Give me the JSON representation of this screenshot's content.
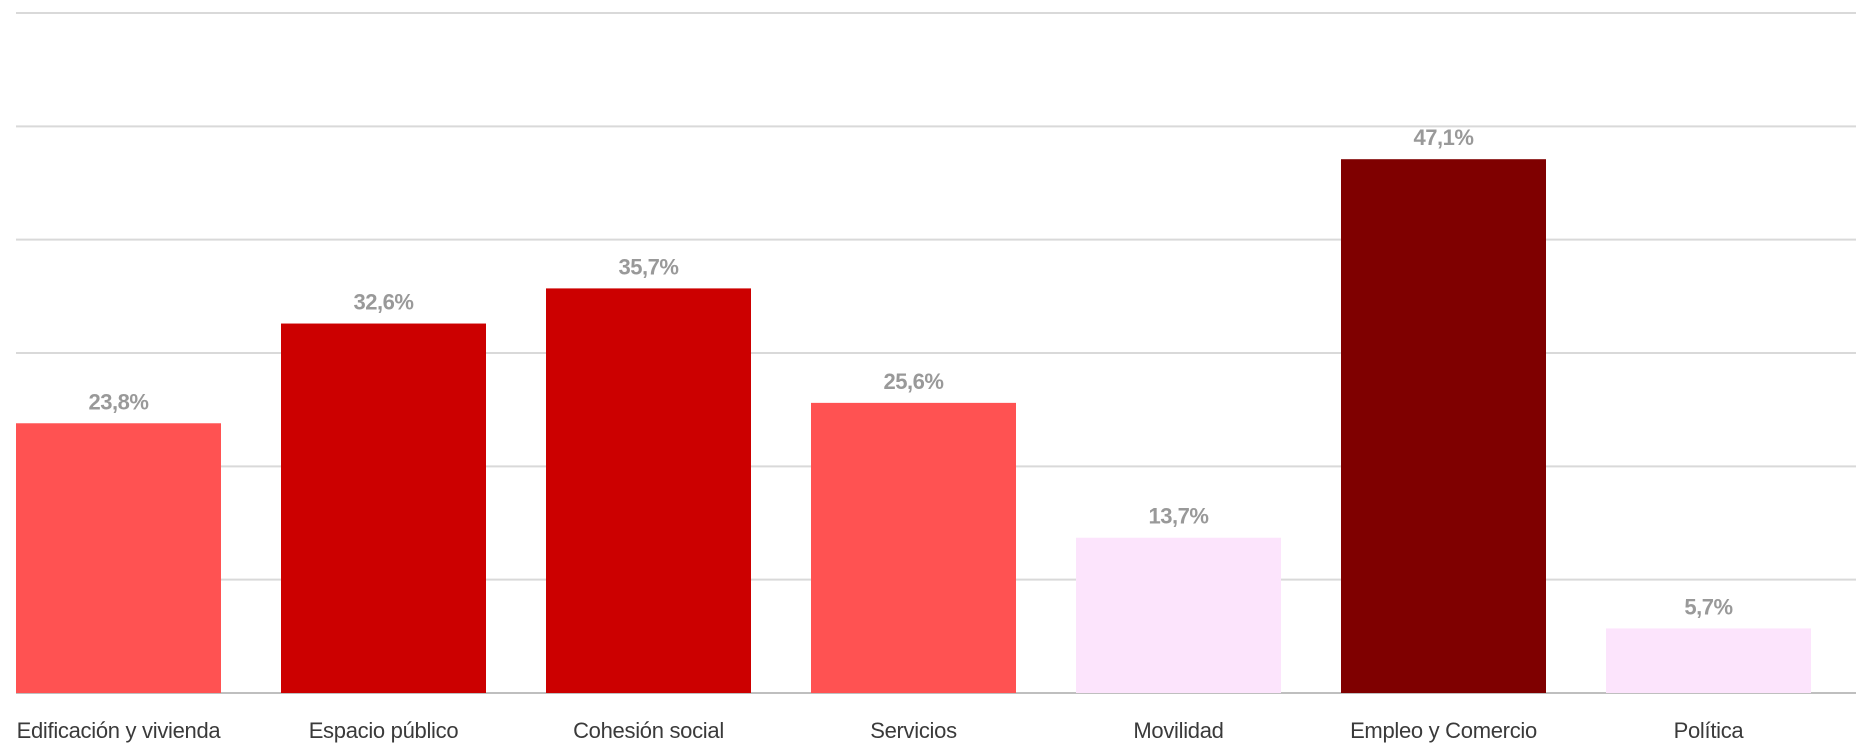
{
  "chart_data": {
    "type": "bar",
    "title": "",
    "xlabel": "",
    "ylabel": "",
    "ylim": [
      0,
      60
    ],
    "grid": true,
    "gridline_values": [
      0,
      10,
      20,
      30,
      40,
      50,
      60
    ],
    "show_y_tick_labels": false,
    "categories": [
      "Edificación y vivienda",
      "Espacio público",
      "Cohesión social",
      "Servicios",
      "Movilidad",
      "Empleo y Comercio",
      "Política"
    ],
    "values": [
      23.8,
      32.6,
      35.7,
      25.6,
      13.7,
      47.1,
      5.7
    ],
    "value_labels": [
      "23,8%",
      "32,6%",
      "35,7%",
      "25,6%",
      "13,7%",
      "47,1%",
      "5,7%"
    ],
    "colors": [
      "#ff5252",
      "#cc0000",
      "#cc0000",
      "#ff5252",
      "#fce4fc",
      "#7f0000",
      "#fce4fc"
    ]
  }
}
